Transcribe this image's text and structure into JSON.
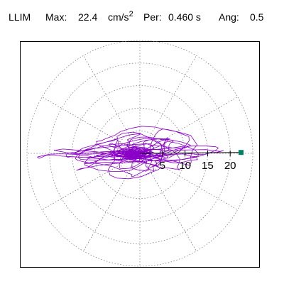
{
  "header": {
    "station": "LLIM",
    "max_label": "Max:",
    "max_value": "22.4",
    "max_unit": "cm/s",
    "max_unit_exp": "2",
    "per_label": "Per:",
    "per_value": "0.460 s",
    "ang_label": "Ang:",
    "ang_value": "0.5"
  },
  "chart_data": {
    "type": "scatter",
    "title": "LLIM  Max: 22.4 cm/s2  Per: 0.460 s  Ang: 0.5",
    "units": "cm/s2",
    "radial_ticks": [
      5,
      10,
      15,
      20
    ],
    "rmax": 25,
    "grid": true,
    "grid_angle_step_deg": 30,
    "axis_range": [
      -25,
      25
    ],
    "max_point": {
      "x": 22.4,
      "y": 0.2
    },
    "colors": {
      "trace": "#8a00c8",
      "grid": "#808080",
      "axis": "#000000",
      "marker": "#008060"
    },
    "trace_seed": 7
  }
}
